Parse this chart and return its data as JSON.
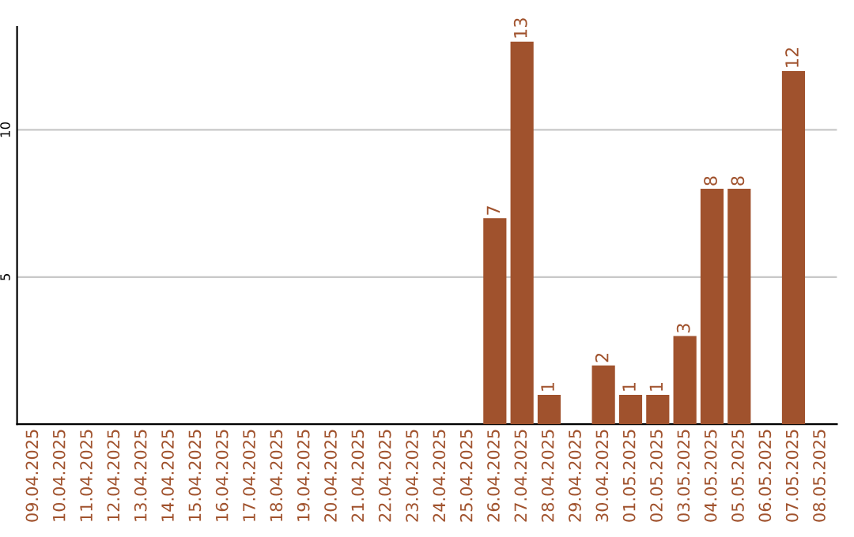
{
  "chart_data": {
    "type": "bar",
    "categories": [
      "09.04.2025",
      "10.04.2025",
      "11.04.2025",
      "12.04.2025",
      "13.04.2025",
      "14.04.2025",
      "15.04.2025",
      "16.04.2025",
      "17.04.2025",
      "18.04.2025",
      "19.04.2025",
      "20.04.2025",
      "21.04.2025",
      "22.04.2025",
      "23.04.2025",
      "24.04.2025",
      "25.04.2025",
      "26.04.2025",
      "27.04.2025",
      "28.04.2025",
      "29.04.2025",
      "30.04.2025",
      "01.05.2025",
      "02.05.2025",
      "03.05.2025",
      "04.05.2025",
      "05.05.2025",
      "06.05.2025",
      "07.05.2025",
      "08.05.2025"
    ],
    "values": [
      0,
      0,
      0,
      0,
      0,
      0,
      0,
      0,
      0,
      0,
      0,
      0,
      0,
      0,
      0,
      0,
      0,
      7,
      13,
      1,
      0,
      2,
      1,
      1,
      3,
      8,
      8,
      0,
      12,
      0
    ],
    "value_labels": [
      null,
      null,
      null,
      null,
      null,
      null,
      null,
      null,
      null,
      null,
      null,
      null,
      null,
      null,
      null,
      null,
      null,
      "7",
      "13",
      "1",
      null,
      "2",
      "1",
      "1",
      "3",
      "8",
      "8",
      null,
      "12",
      null
    ],
    "color": "#a0522d",
    "ylim": [
      0,
      13.5
    ],
    "yticks": [
      5,
      10
    ],
    "grid": "y",
    "legend": false
  }
}
